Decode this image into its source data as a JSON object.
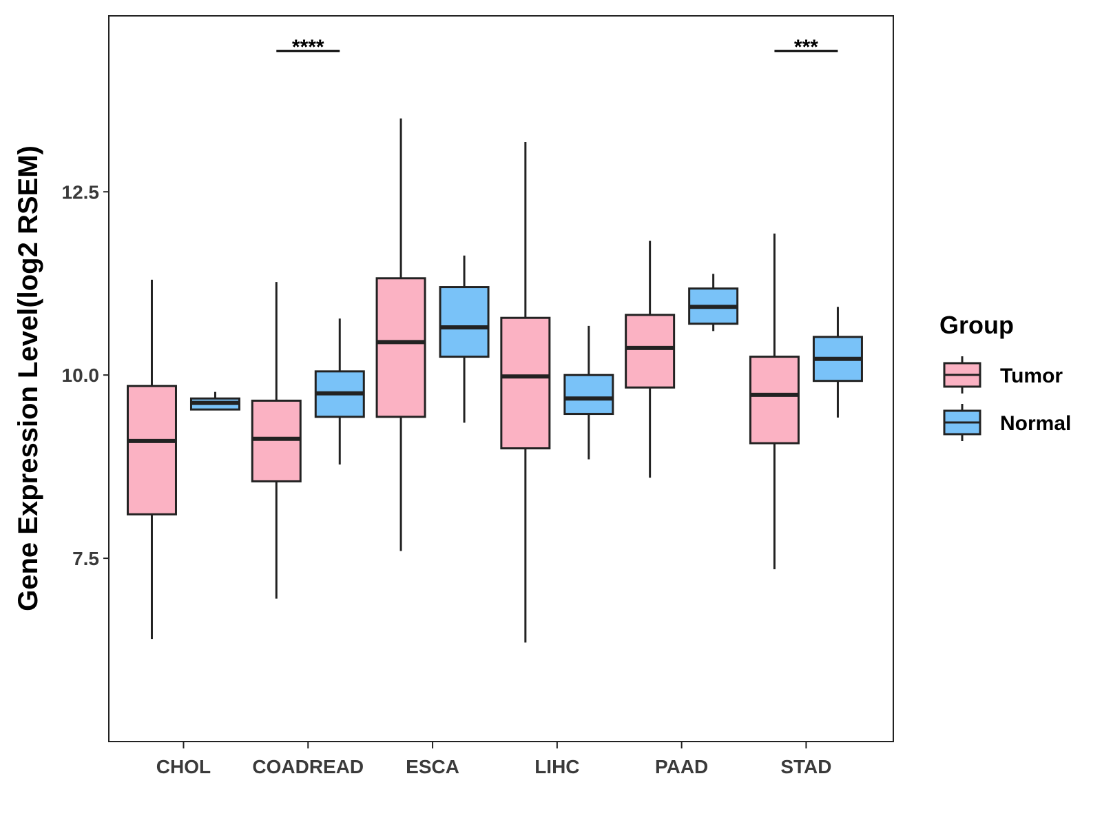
{
  "chart_data": {
    "type": "boxplot",
    "title": "",
    "xlabel": "",
    "ylabel": "Gene Expression Level(log2 RSEM)",
    "ylim": [
      5.0,
      14.9
    ],
    "yticks": [
      7.5,
      10.0,
      12.5
    ],
    "ytick_labels": [
      "7.5",
      "10.0",
      "12.5"
    ],
    "grid": false,
    "legend_position": "right",
    "legend_title": "Group",
    "categories": [
      "CHOL",
      "COADREAD",
      "ESCA",
      "LIHC",
      "PAAD",
      "STAD"
    ],
    "series": [
      {
        "name": "Tumor",
        "color": "#fbb2c3",
        "boxes": [
          {
            "min": 6.4,
            "q1": 8.1,
            "median": 9.1,
            "q3": 9.85,
            "max": 11.3
          },
          {
            "min": 6.95,
            "q1": 8.55,
            "median": 9.13,
            "q3": 9.65,
            "max": 11.27
          },
          {
            "min": 7.6,
            "q1": 9.43,
            "median": 10.45,
            "q3": 11.32,
            "max": 13.5
          },
          {
            "min": 6.35,
            "q1": 9.0,
            "median": 9.98,
            "q3": 10.78,
            "max": 13.18
          },
          {
            "min": 8.6,
            "q1": 9.83,
            "median": 10.37,
            "q3": 10.82,
            "max": 11.83
          },
          {
            "min": 7.35,
            "q1": 9.07,
            "median": 9.73,
            "q3": 10.25,
            "max": 11.93
          }
        ]
      },
      {
        "name": "Normal",
        "color": "#79c2f8",
        "boxes": [
          {
            "min": 9.53,
            "q1": 9.53,
            "median": 9.62,
            "q3": 9.68,
            "max": 9.77
          },
          {
            "min": 8.78,
            "q1": 9.43,
            "median": 9.75,
            "q3": 10.05,
            "max": 10.77
          },
          {
            "min": 9.35,
            "q1": 10.25,
            "median": 10.65,
            "q3": 11.2,
            "max": 11.63
          },
          {
            "min": 8.85,
            "q1": 9.47,
            "median": 9.68,
            "q3": 10.0,
            "max": 10.67
          },
          {
            "min": 10.6,
            "q1": 10.7,
            "median": 10.93,
            "q3": 11.18,
            "max": 11.38
          },
          {
            "min": 9.42,
            "q1": 9.92,
            "median": 10.22,
            "q3": 10.52,
            "max": 10.93
          }
        ]
      }
    ],
    "annotations": [
      {
        "category": "COADREAD",
        "label": "****"
      },
      {
        "category": "STAD",
        "label": "***"
      }
    ]
  }
}
